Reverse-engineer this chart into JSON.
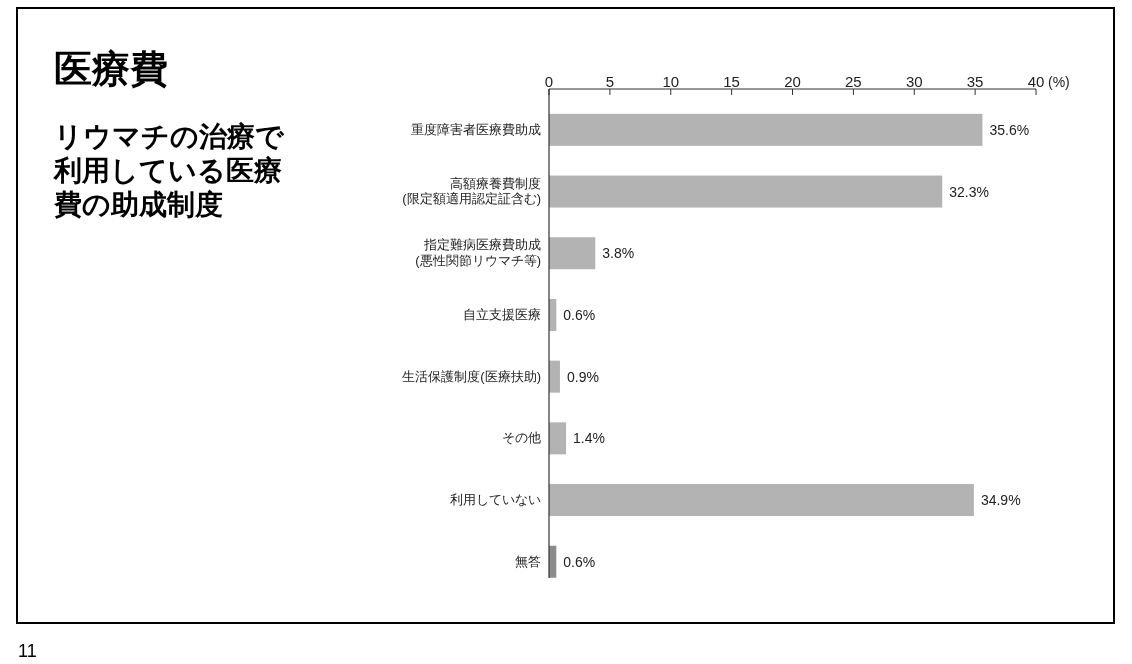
{
  "chart_data": {
    "type": "bar",
    "orientation": "horizontal",
    "title": "医療費",
    "subtitle": "リウマチの治療で利用している医療費の助成制度",
    "xlabel": "(%)",
    "categories": [
      "重度障害者医療費助成",
      "高額療養費制度\n(限定額適用認定証含む)",
      "指定難病医療費助成\n(悪性関節リウマチ等)",
      "自立支援医療",
      "生活保護制度(医療扶助)",
      "その他",
      "利用していない",
      "無答"
    ],
    "values": [
      35.6,
      32.3,
      3.8,
      0.6,
      0.9,
      1.4,
      34.9,
      0.6
    ],
    "colors": [
      "#b3b3b3",
      "#b3b3b3",
      "#b3b3b3",
      "#b3b3b3",
      "#b3b3b3",
      "#b3b3b3",
      "#b3b3b3",
      "#8c8c8c"
    ],
    "value_labels": [
      "35.6%",
      "32.3%",
      "3.8%",
      "0.6%",
      "0.9%",
      "1.4%",
      "34.9%",
      "0.6%"
    ],
    "xlim": [
      0,
      40
    ],
    "xticks": [
      0,
      5,
      10,
      15,
      20,
      25,
      30,
      35,
      40
    ],
    "grid": false,
    "annotations": [
      "11"
    ]
  }
}
